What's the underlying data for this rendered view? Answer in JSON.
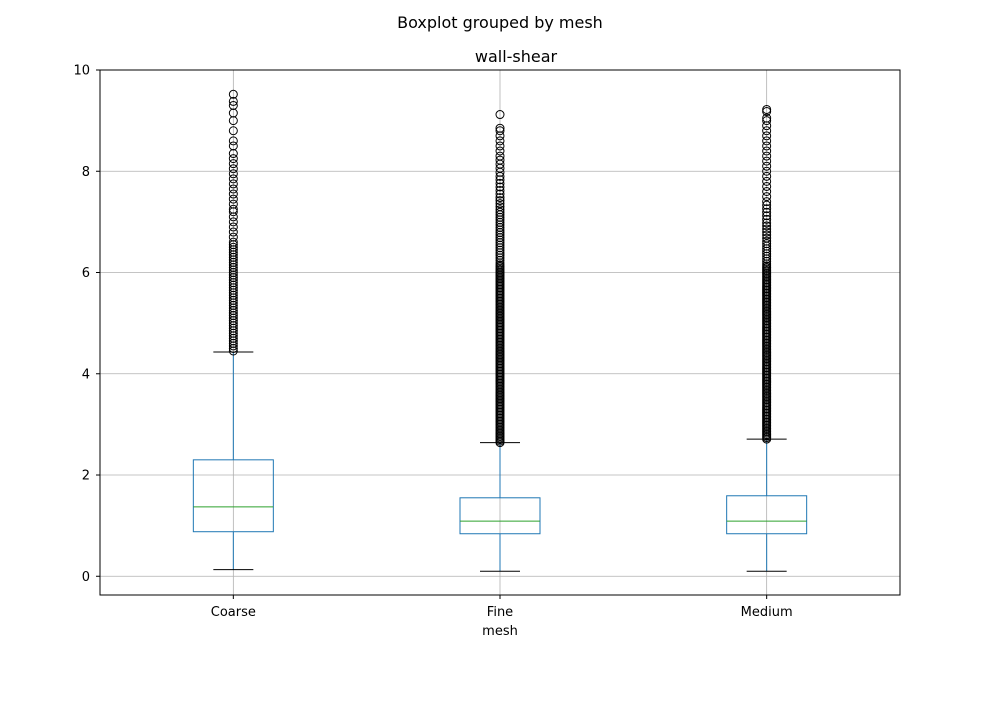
{
  "chart_data": {
    "type": "boxplot",
    "suptitle": "Boxplot grouped by mesh",
    "title": "wall-shear",
    "xlabel": "mesh",
    "ylabel": "",
    "ylim": [
      -0.37,
      10
    ],
    "yticks": [
      0,
      2,
      4,
      6,
      8,
      10
    ],
    "categories": [
      "Coarse",
      "Fine",
      "Medium"
    ],
    "grid": true,
    "legend": "none",
    "colors": {
      "box": "#1f77b4",
      "median": "#2ca02c",
      "whisker_cap": "#000000",
      "flier_edge": "#000000",
      "grid": "#b0b0b0"
    },
    "boxes": [
      {
        "category": "Coarse",
        "whisker_low": 0.13,
        "q1": 0.88,
        "median": 1.37,
        "q3": 2.3,
        "whisker_high": 4.43,
        "fliers": [
          4.45,
          4.5,
          4.55,
          4.6,
          4.65,
          4.7,
          4.75,
          4.8,
          4.85,
          4.9,
          4.95,
          5.0,
          5.05,
          5.1,
          5.15,
          5.2,
          5.25,
          5.3,
          5.35,
          5.4,
          5.45,
          5.5,
          5.55,
          5.6,
          5.65,
          5.7,
          5.75,
          5.8,
          5.85,
          5.9,
          5.95,
          6.0,
          6.05,
          6.1,
          6.15,
          6.2,
          6.25,
          6.3,
          6.35,
          6.4,
          6.45,
          6.5,
          6.55,
          6.6,
          6.7,
          6.8,
          6.9,
          7.0,
          7.1,
          7.2,
          7.25,
          7.35,
          7.45,
          7.55,
          7.65,
          7.75,
          7.85,
          7.95,
          8.05,
          8.15,
          8.25,
          8.35,
          8.5,
          8.6,
          8.8,
          9.0,
          9.15,
          9.3,
          9.38,
          9.52
        ]
      },
      {
        "category": "Fine",
        "whisker_low": 0.1,
        "q1": 0.84,
        "median": 1.09,
        "q3": 1.55,
        "whisker_high": 2.64,
        "fliers": [
          2.64,
          2.67,
          2.7,
          2.73,
          2.76,
          2.79,
          2.82,
          2.85,
          2.88,
          2.91,
          2.94,
          2.97,
          3.0,
          3.03,
          3.06,
          3.09,
          3.12,
          3.15,
          3.18,
          3.21,
          3.24,
          3.27,
          3.3,
          3.33,
          3.36,
          3.39,
          3.42,
          3.45,
          3.48,
          3.51,
          3.54,
          3.57,
          3.6,
          3.63,
          3.66,
          3.69,
          3.72,
          3.75,
          3.78,
          3.81,
          3.84,
          3.87,
          3.9,
          3.93,
          3.96,
          3.99,
          4.02,
          4.05,
          4.08,
          4.11,
          4.14,
          4.17,
          4.2,
          4.23,
          4.26,
          4.29,
          4.32,
          4.35,
          4.38,
          4.41,
          4.44,
          4.47,
          4.5,
          4.53,
          4.56,
          4.59,
          4.62,
          4.65,
          4.68,
          4.71,
          4.74,
          4.77,
          4.8,
          4.83,
          4.86,
          4.89,
          4.92,
          4.95,
          4.98,
          5.01,
          5.04,
          5.07,
          5.1,
          5.13,
          5.16,
          5.19,
          5.22,
          5.25,
          5.28,
          5.31,
          5.34,
          5.37,
          5.4,
          5.43,
          5.46,
          5.49,
          5.52,
          5.55,
          5.58,
          5.61,
          5.64,
          5.67,
          5.7,
          5.73,
          5.76,
          5.79,
          5.82,
          5.85,
          5.88,
          5.91,
          5.94,
          5.97,
          6.0,
          6.03,
          6.06,
          6.09,
          6.12,
          6.15,
          6.19,
          6.24,
          6.29,
          6.34,
          6.39,
          6.44,
          6.49,
          6.54,
          6.59,
          6.64,
          6.69,
          6.74,
          6.79,
          6.84,
          6.89,
          6.94,
          6.99,
          7.04,
          7.09,
          7.14,
          7.19,
          7.24,
          7.3,
          7.36,
          7.42,
          7.48,
          7.55,
          7.62,
          7.69,
          7.76,
          7.83,
          7.9,
          7.98,
          8.06,
          8.14,
          8.22,
          8.3,
          8.4,
          8.5,
          8.6,
          8.7,
          8.8,
          8.85,
          9.12
        ]
      },
      {
        "category": "Medium",
        "whisker_low": 0.1,
        "q1": 0.84,
        "median": 1.09,
        "q3": 1.59,
        "whisker_high": 2.71,
        "fliers": [
          2.71,
          2.74,
          2.77,
          2.8,
          2.83,
          2.86,
          2.89,
          2.92,
          2.95,
          2.98,
          3.01,
          3.04,
          3.07,
          3.1,
          3.13,
          3.16,
          3.19,
          3.22,
          3.25,
          3.28,
          3.31,
          3.34,
          3.37,
          3.4,
          3.43,
          3.46,
          3.49,
          3.52,
          3.55,
          3.58,
          3.61,
          3.64,
          3.67,
          3.7,
          3.73,
          3.76,
          3.79,
          3.82,
          3.85,
          3.88,
          3.91,
          3.94,
          3.97,
          4.0,
          4.03,
          4.06,
          4.09,
          4.12,
          4.15,
          4.18,
          4.21,
          4.24,
          4.27,
          4.3,
          4.33,
          4.36,
          4.39,
          4.42,
          4.45,
          4.48,
          4.51,
          4.54,
          4.57,
          4.6,
          4.63,
          4.66,
          4.69,
          4.72,
          4.75,
          4.78,
          4.81,
          4.84,
          4.87,
          4.9,
          4.93,
          4.96,
          4.99,
          5.02,
          5.05,
          5.08,
          5.11,
          5.14,
          5.17,
          5.2,
          5.23,
          5.26,
          5.29,
          5.32,
          5.35,
          5.38,
          5.41,
          5.44,
          5.47,
          5.5,
          5.53,
          5.56,
          5.59,
          5.62,
          5.65,
          5.68,
          5.71,
          5.74,
          5.77,
          5.8,
          5.83,
          5.86,
          5.89,
          5.92,
          5.95,
          5.98,
          6.01,
          6.04,
          6.07,
          6.1,
          6.13,
          6.17,
          6.22,
          6.27,
          6.32,
          6.37,
          6.42,
          6.47,
          6.52,
          6.57,
          6.62,
          6.68,
          6.74,
          6.8,
          6.86,
          6.92,
          6.98,
          7.05,
          7.12,
          7.19,
          7.26,
          7.33,
          7.4,
          7.5,
          7.6,
          7.7,
          7.8,
          7.9,
          8.0,
          8.1,
          8.2,
          8.3,
          8.4,
          8.5,
          8.6,
          8.7,
          8.8,
          8.9,
          9.0,
          9.05,
          9.18,
          9.22
        ]
      }
    ]
  }
}
